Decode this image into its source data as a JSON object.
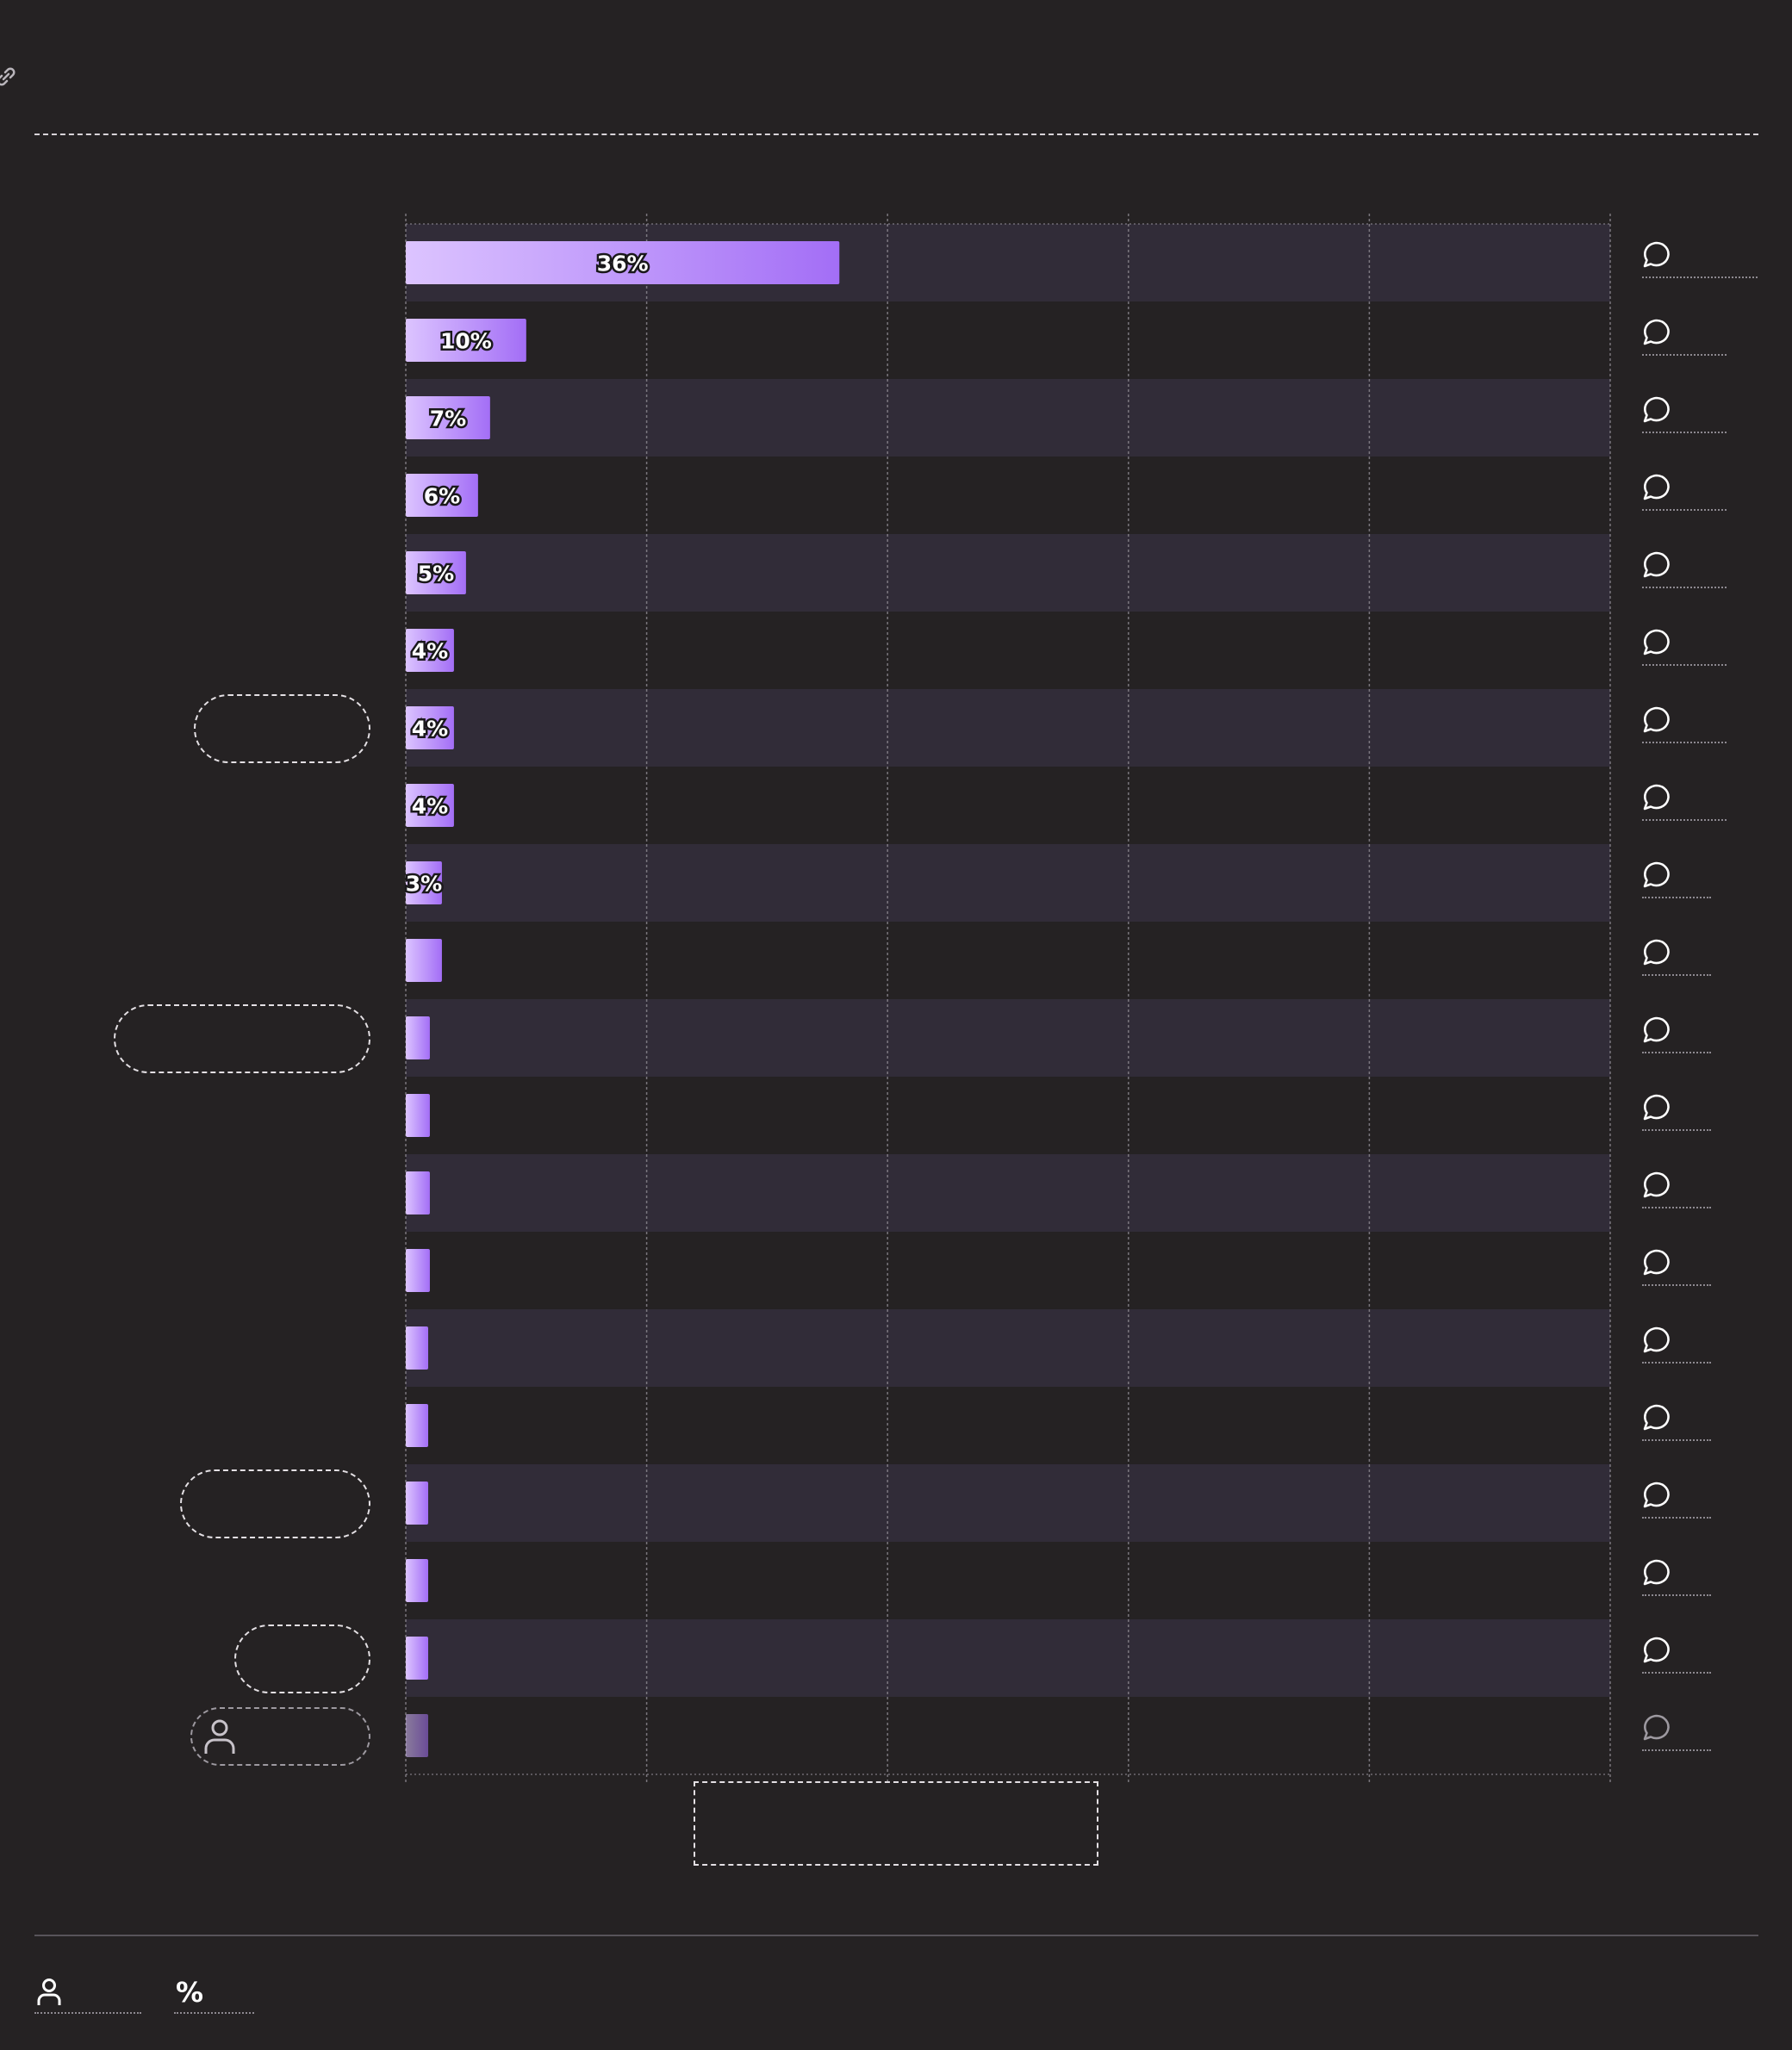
{
  "colors": {
    "background": "#252223",
    "band": "#312c38",
    "bar_light": "#dcc4ff",
    "bar_dark": "#a36ef6",
    "grid": "#8e8a92"
  },
  "icons": {
    "header": "link-icon",
    "row_action": "comment-icon",
    "category_highlight": "user-icon",
    "footer": [
      "user-icon",
      "percent-icon"
    ]
  },
  "footer": {
    "percent_symbol": "%"
  },
  "chart_data": {
    "type": "bar",
    "orientation": "horizontal",
    "xlim": [
      0,
      100
    ],
    "grid": true,
    "values": [
      36,
      10,
      7,
      6,
      5,
      4,
      4,
      4,
      3,
      3,
      2,
      2,
      2,
      2,
      1,
      1,
      1,
      1,
      1,
      1
    ],
    "value_labels": [
      "36%",
      "10%",
      "7%",
      "6%",
      "5%",
      "4%",
      "4%",
      "4%",
      "3%",
      "",
      "",
      "",
      "",
      "",
      "",
      "",
      "",
      "",
      "",
      ""
    ],
    "highlighted_index": 19
  }
}
